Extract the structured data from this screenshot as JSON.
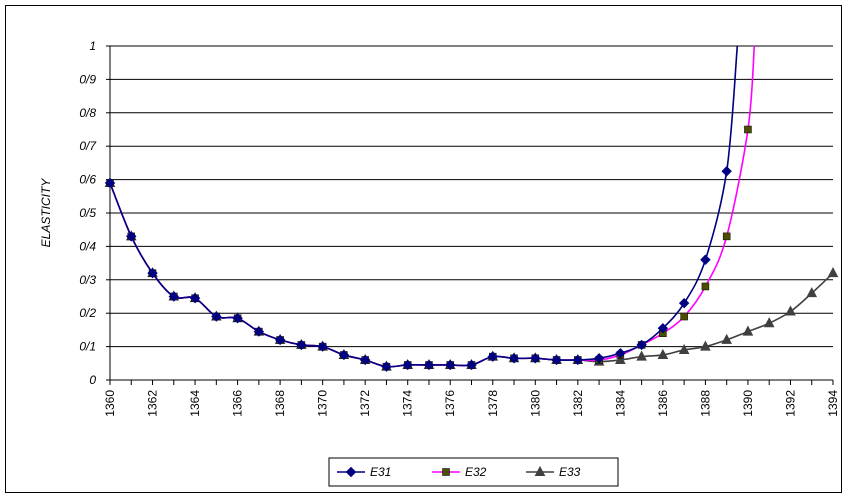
{
  "chart_data": {
    "type": "line",
    "title": "",
    "xlabel": "",
    "ylabel": "ELASTICITY",
    "xlim": [
      1360,
      1394
    ],
    "ylim": [
      0,
      1
    ],
    "x_ticks": [
      "1360",
      "1362",
      "1364",
      "1366",
      "1368",
      "1370",
      "1372",
      "1374",
      "1376",
      "1378",
      "1380",
      "1382",
      "1384",
      "1386",
      "1388",
      "1390",
      "1392",
      "1394"
    ],
    "y_ticks": [
      "0",
      "0/1",
      "0/2",
      "0/3",
      "0/4",
      "0/5",
      "0/6",
      "0/7",
      "0/8",
      "0/9",
      "1"
    ],
    "grid": "horizontal",
    "legend_position": "bottom",
    "series": [
      {
        "name": "E31",
        "color": "#000080",
        "marker": "diamond",
        "x": [
          1360,
          1361,
          1362,
          1363,
          1364,
          1365,
          1366,
          1367,
          1368,
          1369,
          1370,
          1371,
          1372,
          1373,
          1374,
          1375,
          1376,
          1377,
          1378,
          1379,
          1380,
          1381,
          1382,
          1383,
          1384,
          1385,
          1386,
          1387,
          1388,
          1389
        ],
        "values": [
          0.59,
          0.43,
          0.32,
          0.25,
          0.245,
          0.19,
          0.185,
          0.145,
          0.12,
          0.105,
          0.1,
          0.075,
          0.06,
          0.04,
          0.045,
          0.045,
          0.045,
          0.045,
          0.07,
          0.065,
          0.065,
          0.06,
          0.06,
          0.065,
          0.08,
          0.105,
          0.155,
          0.23,
          0.36,
          0.625
        ],
        "overflow_end": [
          1389.5,
          1.0
        ]
      },
      {
        "name": "E32",
        "color": "#ff00ff",
        "marker": "square",
        "marker_color": "#4d4d00",
        "x": [
          1360,
          1361,
          1362,
          1363,
          1364,
          1365,
          1366,
          1367,
          1368,
          1369,
          1370,
          1371,
          1372,
          1373,
          1374,
          1375,
          1376,
          1377,
          1378,
          1379,
          1380,
          1381,
          1382,
          1383,
          1384,
          1385,
          1386,
          1387,
          1388,
          1389,
          1390
        ],
        "values": [
          0.59,
          0.43,
          0.32,
          0.25,
          0.245,
          0.19,
          0.185,
          0.145,
          0.12,
          0.105,
          0.1,
          0.075,
          0.06,
          0.04,
          0.045,
          0.045,
          0.045,
          0.045,
          0.07,
          0.065,
          0.065,
          0.06,
          0.06,
          0.06,
          0.075,
          0.105,
          0.14,
          0.19,
          0.28,
          0.43,
          0.75
        ],
        "overflow_end": [
          1390.3,
          1.0
        ]
      },
      {
        "name": "E33",
        "color": "#404040",
        "marker": "triangle",
        "x": [
          1360,
          1361,
          1362,
          1363,
          1364,
          1365,
          1366,
          1367,
          1368,
          1369,
          1370,
          1371,
          1372,
          1373,
          1374,
          1375,
          1376,
          1377,
          1378,
          1379,
          1380,
          1381,
          1382,
          1383,
          1384,
          1385,
          1386,
          1387,
          1388,
          1389,
          1390,
          1391,
          1392,
          1393,
          1394
        ],
        "values": [
          0.59,
          0.43,
          0.32,
          0.25,
          0.245,
          0.19,
          0.185,
          0.145,
          0.12,
          0.105,
          0.1,
          0.075,
          0.06,
          0.04,
          0.045,
          0.045,
          0.045,
          0.045,
          0.07,
          0.065,
          0.065,
          0.06,
          0.06,
          0.055,
          0.06,
          0.07,
          0.075,
          0.09,
          0.1,
          0.12,
          0.145,
          0.17,
          0.205,
          0.26,
          0.32
        ]
      }
    ]
  }
}
